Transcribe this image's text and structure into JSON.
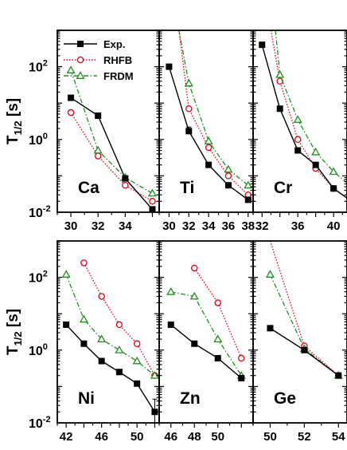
{
  "figure": {
    "ylabel_main": "T",
    "ylabel_sub": "1/2",
    "ylabel_unit": " [s]",
    "yticks": [
      {
        "value": 0.01,
        "base": "10",
        "exp": "-2"
      },
      {
        "value": 1,
        "base": "10",
        "exp": "0"
      },
      {
        "value": 100,
        "base": "10",
        "exp": "2"
      }
    ],
    "ylim": [
      0.01,
      1000
    ],
    "yscale": "log",
    "legend": {
      "placement": "top-left of first panel",
      "entries": [
        {
          "series": "exp",
          "label": "Exp."
        },
        {
          "series": "rhfb",
          "label": "RHFB"
        },
        {
          "series": "frdm",
          "label": "FRDM"
        }
      ]
    },
    "series_styles": {
      "exp": {
        "color": "#000000",
        "marker": "filled-square",
        "line": "solid"
      },
      "rhfb": {
        "color": "#e0001b",
        "marker": "open-circle",
        "line": "dotted"
      },
      "frdm": {
        "color": "#1f8f1f",
        "marker": "open-triangle",
        "line": "dash-dot"
      }
    }
  },
  "chart_data": [
    {
      "type": "line",
      "element": "Ca",
      "xlim": [
        29,
        36.5
      ],
      "xticks": [
        30,
        32,
        34
      ],
      "series": [
        {
          "key": "exp",
          "x": [
            30,
            32,
            34,
            36
          ],
          "y": [
            14,
            4.5,
            0.085,
            0.012
          ],
          "yerr": [
            0,
            0,
            0,
            0
          ]
        },
        {
          "key": "rhfb",
          "x": [
            30,
            32,
            34,
            36
          ],
          "y": [
            5.5,
            0.35,
            0.055,
            0.02
          ]
        },
        {
          "key": "frdm",
          "x": [
            30,
            32,
            34,
            36
          ],
          "y": [
            80,
            0.5,
            0.09,
            0.033
          ]
        }
      ]
    },
    {
      "type": "line",
      "element": "Ti",
      "xlim": [
        29,
        38.5
      ],
      "xticks": [
        30,
        32,
        34,
        36,
        38
      ],
      "series": [
        {
          "key": "exp",
          "x": [
            30,
            32,
            34,
            36,
            38
          ],
          "y": [
            100,
            1.7,
            0.2,
            0.055,
            0.022
          ],
          "yerr": [
            0,
            0.5,
            0,
            0,
            0
          ]
        },
        {
          "key": "rhfb",
          "x": [
            31,
            32,
            34,
            36,
            38
          ],
          "y": [
            1000,
            7,
            0.6,
            0.1,
            0.03
          ]
        },
        {
          "key": "frdm",
          "x": [
            31,
            32,
            34,
            36,
            38
          ],
          "y": [
            1000,
            35,
            0.9,
            0.15,
            0.055
          ]
        }
      ]
    },
    {
      "type": "line",
      "element": "Cr",
      "xlim": [
        31,
        41.5
      ],
      "xticks": [
        32,
        36,
        40
      ],
      "series": [
        {
          "key": "exp",
          "x": [
            32,
            34,
            36,
            38,
            40,
            42
          ],
          "y": [
            400,
            7,
            0.5,
            0.2,
            0.045,
            0.02
          ],
          "yerr": [
            0,
            0,
            0,
            0,
            0,
            0
          ]
        },
        {
          "key": "rhfb",
          "x": [
            33,
            34,
            36,
            38,
            40,
            42
          ],
          "y": [
            1000,
            40,
            1.0,
            0.16,
            0.045,
            0.02
          ]
        },
        {
          "key": "frdm",
          "x": [
            33.5,
            34,
            36,
            38,
            40,
            42
          ],
          "y": [
            1000,
            60,
            3.5,
            0.45,
            0.13,
            0.05
          ]
        }
      ]
    },
    {
      "type": "line",
      "element": "Ni",
      "xlim": [
        41,
        52.5
      ],
      "xticks": [
        42,
        46,
        50
      ],
      "series": [
        {
          "key": "exp",
          "x": [
            42,
            44,
            46,
            48,
            50,
            52
          ],
          "y": [
            5,
            1.5,
            0.5,
            0.25,
            0.12,
            0.02
          ],
          "yerr": [
            0,
            0,
            0,
            0,
            0,
            0.025
          ]
        },
        {
          "key": "rhfb",
          "x": [
            44,
            46,
            48,
            50,
            52
          ],
          "y": [
            250,
            30,
            5,
            1.5,
            0.2
          ]
        },
        {
          "key": "frdm",
          "x": [
            42,
            44,
            46,
            48,
            50,
            52
          ],
          "y": [
            120,
            7,
            2.0,
            1.0,
            0.5,
            0.2
          ]
        }
      ]
    },
    {
      "type": "line",
      "element": "Zn",
      "xlim": [
        45,
        53
      ],
      "xticks": [
        46,
        48,
        50
      ],
      "series": [
        {
          "key": "exp",
          "x": [
            46,
            48,
            50,
            52
          ],
          "y": [
            5,
            1.5,
            0.6,
            0.17
          ],
          "yerr": [
            0,
            0,
            0,
            0
          ]
        },
        {
          "key": "rhfb",
          "x": [
            48,
            50,
            52
          ],
          "y": [
            180,
            20,
            0.6
          ]
        },
        {
          "key": "frdm",
          "x": [
            46,
            48,
            50,
            52
          ],
          "y": [
            40,
            30,
            2,
            0.2
          ]
        }
      ]
    },
    {
      "type": "line",
      "element": "Ge",
      "xlim": [
        49,
        54.5
      ],
      "xticks": [
        50,
        52,
        54
      ],
      "series": [
        {
          "key": "exp",
          "x": [
            50,
            52,
            54
          ],
          "y": [
            4,
            1.0,
            0.2
          ],
          "yerr": [
            0,
            0,
            0
          ]
        },
        {
          "key": "rhfb",
          "x": [
            50,
            52,
            54
          ],
          "y": [
            1000,
            1.3,
            0.2
          ]
        },
        {
          "key": "frdm",
          "x": [
            50,
            52,
            54
          ],
          "y": [
            120,
            1.1,
            0.2
          ]
        }
      ]
    }
  ]
}
